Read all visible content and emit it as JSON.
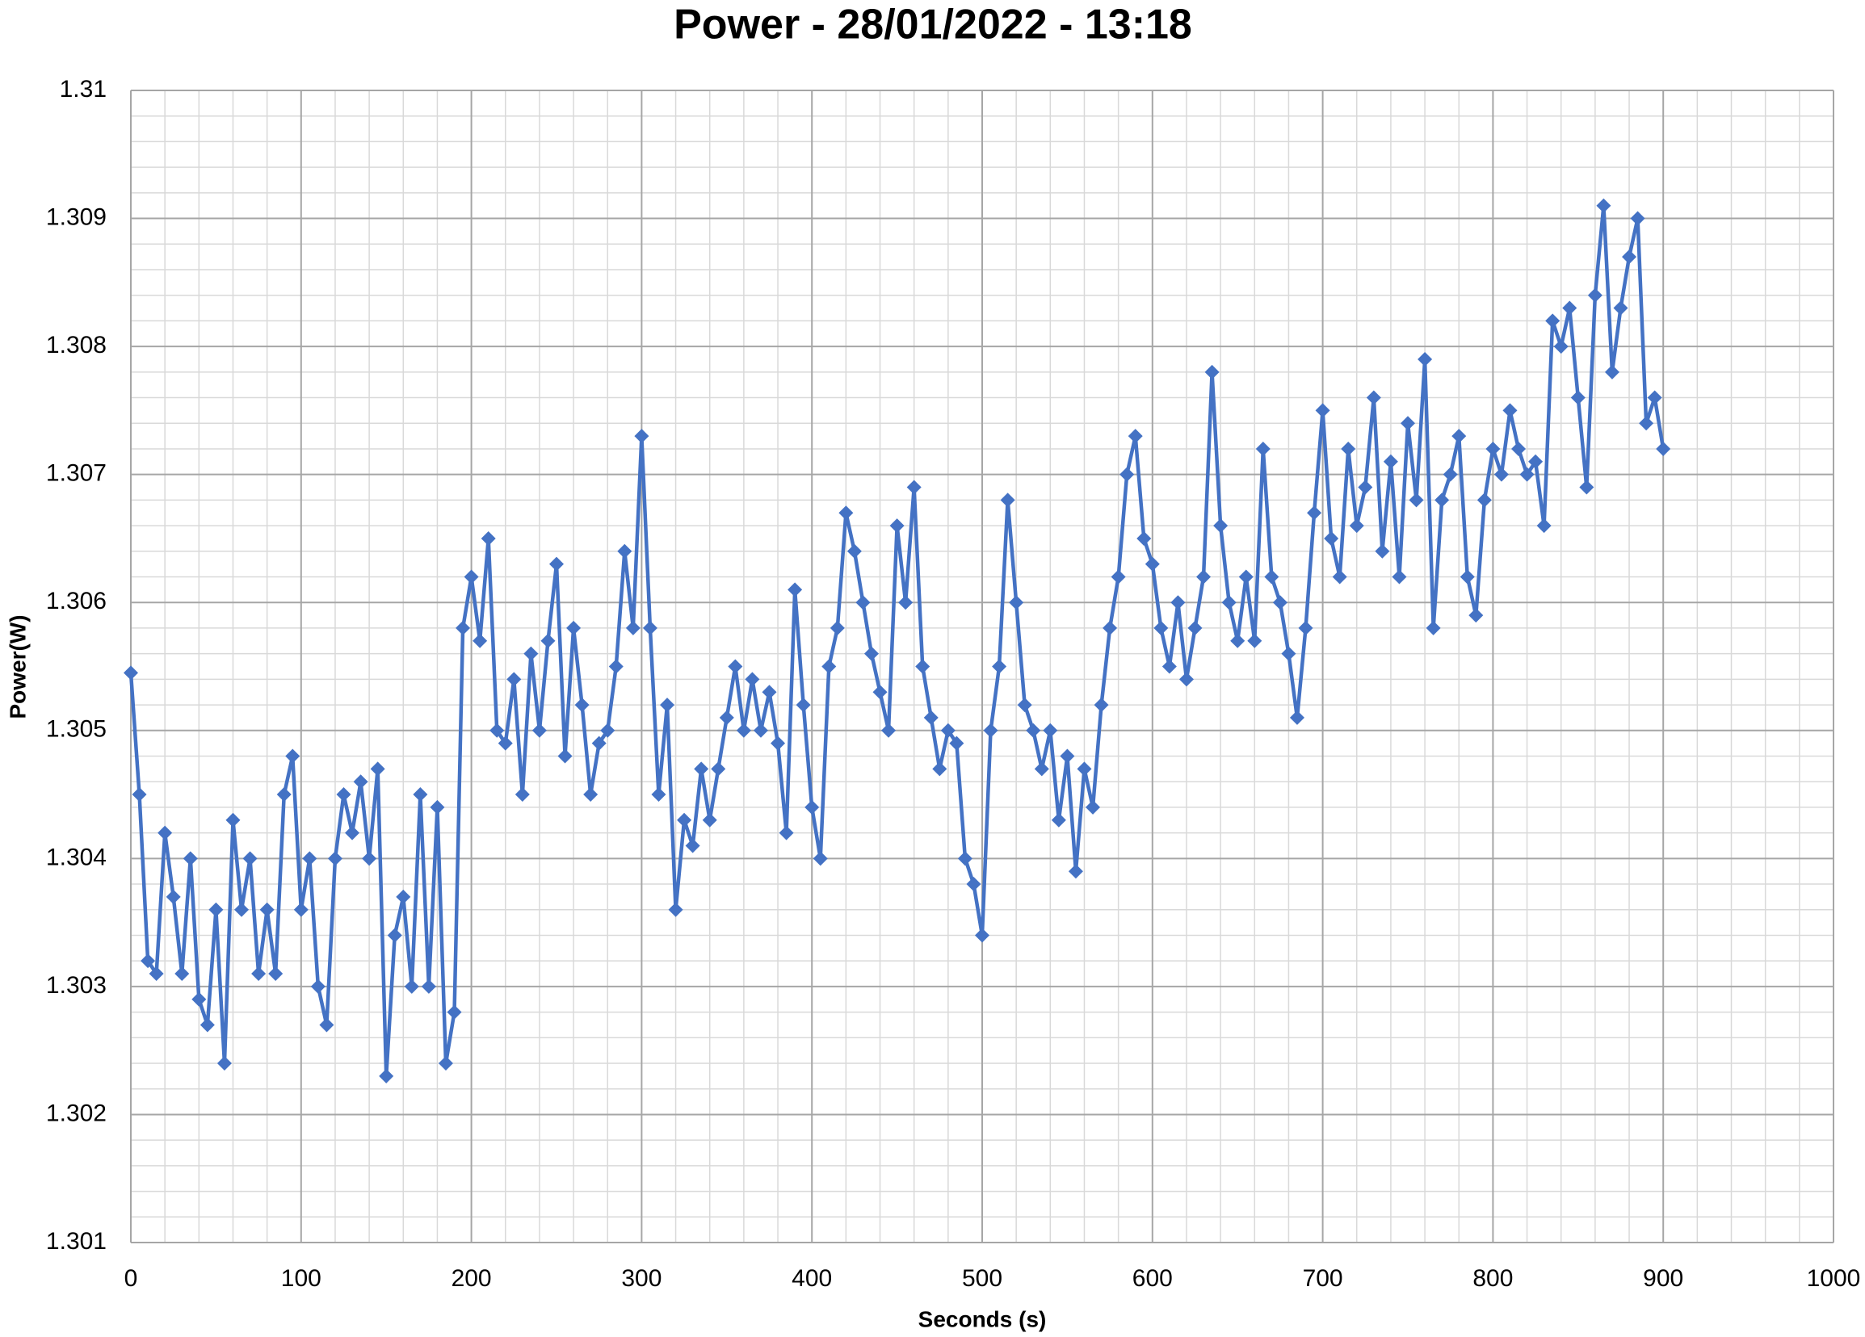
{
  "chart_data": {
    "type": "line",
    "title": "Power - 28/01/2022 - 13:18",
    "x_label": "Seconds (s)",
    "y_label": "Power(W)",
    "color": "#4472C4",
    "grid": true,
    "minor_grid": true,
    "marker": "diamond",
    "x": [
      0,
      5,
      10,
      15,
      20,
      25,
      30,
      35,
      40,
      45,
      50,
      55,
      60,
      65,
      70,
      75,
      80,
      85,
      90,
      95,
      100,
      105,
      110,
      115,
      120,
      125,
      130,
      135,
      140,
      145,
      150,
      155,
      160,
      165,
      170,
      175,
      180,
      185,
      190,
      195,
      200,
      205,
      210,
      215,
      220,
      225,
      230,
      235,
      240,
      245,
      250,
      255,
      260,
      265,
      270,
      275,
      280,
      285,
      290,
      295,
      300,
      305,
      310,
      315,
      320,
      325,
      330,
      335,
      340,
      345,
      350,
      355,
      360,
      365,
      370,
      375,
      380,
      385,
      390,
      395,
      400,
      405,
      410,
      415,
      420,
      425,
      430,
      435,
      440,
      445,
      450,
      455,
      460,
      465,
      470,
      475,
      480,
      485,
      490,
      495,
      500,
      505,
      510,
      515,
      520,
      525,
      530,
      535,
      540,
      545,
      550,
      555,
      560,
      565,
      570,
      575,
      580,
      585,
      590,
      595,
      600,
      605,
      610,
      615,
      620,
      625,
      630,
      635,
      640,
      645,
      650,
      655,
      660,
      665,
      670,
      675,
      680,
      685,
      690,
      695,
      700,
      705,
      710,
      715,
      720,
      725,
      730,
      735,
      740,
      745,
      750,
      755,
      760,
      765,
      770,
      775,
      780,
      785,
      790,
      795,
      800,
      805,
      810,
      815,
      820,
      825,
      830,
      835,
      840,
      845,
      850,
      855,
      860,
      865,
      870,
      875,
      880,
      885,
      890,
      895,
      900
    ],
    "values": [
      1.30545,
      1.3045,
      1.3032,
      1.3031,
      1.3042,
      1.3037,
      1.3031,
      1.304,
      1.3029,
      1.3027,
      1.3036,
      1.3024,
      1.3043,
      1.3036,
      1.304,
      1.3031,
      1.3036,
      1.3031,
      1.3045,
      1.3048,
      1.3036,
      1.304,
      1.303,
      1.3027,
      1.304,
      1.3045,
      1.3042,
      1.3046,
      1.304,
      1.3047,
      1.3023,
      1.3034,
      1.3037,
      1.303,
      1.3045,
      1.303,
      1.3044,
      1.3024,
      1.3028,
      1.3058,
      1.3062,
      1.3057,
      1.3065,
      1.305,
      1.3049,
      1.3054,
      1.3045,
      1.3056,
      1.305,
      1.3057,
      1.3063,
      1.3048,
      1.3058,
      1.3052,
      1.3045,
      1.3049,
      1.305,
      1.3055,
      1.3064,
      1.3058,
      1.3073,
      1.3058,
      1.3045,
      1.3052,
      1.3036,
      1.3043,
      1.3041,
      1.3047,
      1.3043,
      1.3047,
      1.3051,
      1.3055,
      1.305,
      1.3054,
      1.305,
      1.3053,
      1.3049,
      1.3042,
      1.3061,
      1.3052,
      1.3044,
      1.304,
      1.3055,
      1.3058,
      1.3067,
      1.3064,
      1.306,
      1.3056,
      1.3053,
      1.305,
      1.3066,
      1.306,
      1.3069,
      1.3055,
      1.3051,
      1.3047,
      1.305,
      1.3049,
      1.304,
      1.3038,
      1.3034,
      1.305,
      1.3055,
      1.3068,
      1.306,
      1.3052,
      1.305,
      1.3047,
      1.305,
      1.3043,
      1.3048,
      1.3039,
      1.3047,
      1.3044,
      1.3052,
      1.3058,
      1.3062,
      1.307,
      1.3073,
      1.3065,
      1.3063,
      1.3058,
      1.3055,
      1.306,
      1.3054,
      1.3058,
      1.3062,
      1.3078,
      1.3066,
      1.306,
      1.3057,
      1.3062,
      1.3057,
      1.3072,
      1.3062,
      1.306,
      1.3056,
      1.3051,
      1.3058,
      1.3067,
      1.3075,
      1.3065,
      1.3062,
      1.3072,
      1.3066,
      1.3069,
      1.3076,
      1.3064,
      1.3071,
      1.3062,
      1.3074,
      1.3068,
      1.3079,
      1.3058,
      1.3068,
      1.307,
      1.3073,
      1.3062,
      1.3059,
      1.3068,
      1.3072,
      1.307,
      1.3075,
      1.3072,
      1.307,
      1.3071,
      1.3066,
      1.3082,
      1.308,
      1.3083,
      1.3076,
      1.3069,
      1.3084,
      1.3091,
      1.3078,
      1.3083,
      1.3087,
      1.309,
      1.3074,
      1.3076,
      1.3072
    ],
    "xlim": [
      0,
      1000
    ],
    "xticks": [
      0,
      100,
      200,
      300,
      400,
      500,
      600,
      700,
      800,
      900,
      1000
    ],
    "ylim": [
      1.301,
      1.31
    ],
    "yticks": [
      1.301,
      1.302,
      1.303,
      1.304,
      1.305,
      1.306,
      1.307,
      1.308,
      1.309,
      1.31
    ]
  }
}
